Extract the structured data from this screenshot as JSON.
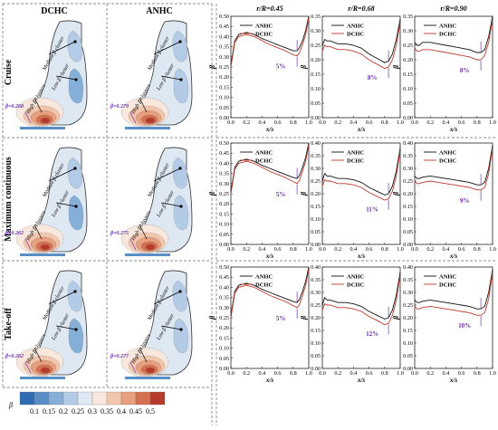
{
  "colors": {
    "anhc": "#111111",
    "dchc": "#c0392b",
    "annotation": "#6a2fb0",
    "contour": [
      "#2f6db3",
      "#5a8ec6",
      "#86afd8",
      "#b3cbe6",
      "#dde8f3",
      "#f7e7dc",
      "#f2c6ad",
      "#e69f7f",
      "#d4704f",
      "#b53a2b"
    ]
  },
  "panel_headers": {
    "dchc": "DCHC",
    "anhc": "ANHC"
  },
  "row_labels": [
    "Cruise",
    "Maximum continuous",
    "Take-off"
  ],
  "cluster_labels": {
    "medium": "Medium β cluster",
    "low": "Low β cluster",
    "high": "High β clusters"
  },
  "contour_values": [
    {
      "dchc": "β=0.268",
      "anhc": "β=0.279"
    },
    {
      "dchc": "β=0.262",
      "anhc": "β=0.275"
    },
    {
      "dchc": "β=0.262",
      "anhc": "β=0.277"
    }
  ],
  "colorbar": {
    "symbol": "β",
    "ticks": [
      "0.1",
      "0.15",
      "0.2",
      "0.25",
      "0.3",
      "0.35",
      "0.4",
      "0.45",
      "0.5"
    ]
  },
  "chart_data": [
    {
      "type": "line",
      "title": "r/R=0.45",
      "row": "Cruise",
      "xlabel": "x/s",
      "ylabel": "β",
      "xlim": [
        0,
        1
      ],
      "ylim": [
        0,
        0.5
      ],
      "series": [
        {
          "name": "ANHC",
          "x": [
            0,
            0.05,
            0.1,
            0.2,
            0.3,
            0.4,
            0.5,
            0.6,
            0.7,
            0.8,
            0.85,
            0.88,
            0.92,
            0.96,
            1
          ],
          "values": [
            0.26,
            0.38,
            0.41,
            0.42,
            0.41,
            0.39,
            0.375,
            0.36,
            0.345,
            0.33,
            0.33,
            0.345,
            0.38,
            0.43,
            0.5
          ]
        },
        {
          "name": "DCHC",
          "x": [
            0,
            0.05,
            0.1,
            0.2,
            0.3,
            0.4,
            0.5,
            0.6,
            0.7,
            0.8,
            0.85,
            0.88,
            0.92,
            0.96,
            1
          ],
          "values": [
            0.25,
            0.37,
            0.4,
            0.41,
            0.4,
            0.38,
            0.36,
            0.345,
            0.33,
            0.31,
            0.305,
            0.32,
            0.36,
            0.41,
            0.49
          ]
        }
      ],
      "annotation": "5%"
    },
    {
      "type": "line",
      "title": "r/R=0.68",
      "row": "Cruise",
      "xlabel": "x/s",
      "ylabel": "β",
      "xlim": [
        0,
        1
      ],
      "ylim": [
        0,
        0.35
      ],
      "series": [
        {
          "name": "ANHC",
          "x": [
            0,
            0.03,
            0.06,
            0.1,
            0.2,
            0.3,
            0.4,
            0.5,
            0.6,
            0.7,
            0.8,
            0.85,
            0.9,
            0.95,
            1
          ],
          "values": [
            0.25,
            0.27,
            0.265,
            0.265,
            0.255,
            0.255,
            0.25,
            0.24,
            0.22,
            0.205,
            0.19,
            0.195,
            0.22,
            0.27,
            0.34
          ]
        },
        {
          "name": "DCHC",
          "x": [
            0,
            0.03,
            0.06,
            0.1,
            0.2,
            0.3,
            0.4,
            0.5,
            0.6,
            0.7,
            0.8,
            0.85,
            0.9,
            0.95,
            1
          ],
          "values": [
            0.23,
            0.25,
            0.245,
            0.245,
            0.235,
            0.235,
            0.23,
            0.22,
            0.2,
            0.185,
            0.17,
            0.175,
            0.2,
            0.25,
            0.33
          ]
        }
      ],
      "annotation": "8%"
    },
    {
      "type": "line",
      "title": "r/R=0.90",
      "row": "Cruise",
      "xlabel": "x/s",
      "ylabel": "β",
      "xlim": [
        0,
        1
      ],
      "ylim": [
        0,
        0.35
      ],
      "series": [
        {
          "name": "ANHC",
          "x": [
            0,
            0.03,
            0.06,
            0.1,
            0.2,
            0.3,
            0.4,
            0.5,
            0.6,
            0.7,
            0.8,
            0.85,
            0.9,
            0.95,
            1
          ],
          "values": [
            0.26,
            0.25,
            0.25,
            0.26,
            0.26,
            0.255,
            0.25,
            0.245,
            0.24,
            0.235,
            0.225,
            0.225,
            0.235,
            0.28,
            0.35
          ]
        },
        {
          "name": "DCHC",
          "x": [
            0,
            0.03,
            0.06,
            0.1,
            0.2,
            0.3,
            0.4,
            0.5,
            0.6,
            0.7,
            0.8,
            0.85,
            0.9,
            0.95,
            1
          ],
          "values": [
            0.24,
            0.23,
            0.23,
            0.235,
            0.235,
            0.23,
            0.225,
            0.22,
            0.215,
            0.21,
            0.2,
            0.2,
            0.215,
            0.26,
            0.34
          ]
        }
      ],
      "annotation": "8%"
    },
    {
      "type": "line",
      "title": "",
      "row": "Maximum continuous",
      "xlabel": "x/s",
      "ylabel": "β",
      "xlim": [
        0,
        1
      ],
      "ylim": [
        0,
        0.5
      ],
      "series": [
        {
          "name": "ANHC",
          "x": [
            0,
            0.05,
            0.1,
            0.2,
            0.3,
            0.4,
            0.5,
            0.6,
            0.7,
            0.8,
            0.85,
            0.88,
            0.92,
            0.96,
            1
          ],
          "values": [
            0.26,
            0.38,
            0.41,
            0.42,
            0.41,
            0.39,
            0.375,
            0.36,
            0.345,
            0.33,
            0.325,
            0.34,
            0.38,
            0.43,
            0.5
          ]
        },
        {
          "name": "DCHC",
          "x": [
            0,
            0.05,
            0.1,
            0.2,
            0.3,
            0.4,
            0.5,
            0.6,
            0.7,
            0.8,
            0.85,
            0.88,
            0.92,
            0.96,
            1
          ],
          "values": [
            0.25,
            0.37,
            0.4,
            0.41,
            0.4,
            0.38,
            0.36,
            0.345,
            0.33,
            0.31,
            0.3,
            0.315,
            0.36,
            0.41,
            0.49
          ]
        }
      ],
      "annotation": "5%"
    },
    {
      "type": "line",
      "title": "",
      "row": "Maximum continuous",
      "xlabel": "x/s",
      "ylabel": "β",
      "xlim": [
        0,
        1
      ],
      "ylim": [
        0,
        0.4
      ],
      "series": [
        {
          "name": "ANHC",
          "x": [
            0,
            0.03,
            0.06,
            0.1,
            0.2,
            0.3,
            0.4,
            0.5,
            0.6,
            0.7,
            0.8,
            0.85,
            0.9,
            0.95,
            1
          ],
          "values": [
            0.25,
            0.28,
            0.27,
            0.27,
            0.26,
            0.26,
            0.255,
            0.245,
            0.225,
            0.21,
            0.195,
            0.2,
            0.23,
            0.29,
            0.38
          ]
        },
        {
          "name": "DCHC",
          "x": [
            0,
            0.03,
            0.06,
            0.1,
            0.2,
            0.3,
            0.4,
            0.5,
            0.6,
            0.7,
            0.8,
            0.85,
            0.9,
            0.95,
            1
          ],
          "values": [
            0.23,
            0.255,
            0.25,
            0.25,
            0.24,
            0.24,
            0.235,
            0.225,
            0.205,
            0.19,
            0.175,
            0.18,
            0.21,
            0.27,
            0.37
          ]
        }
      ],
      "annotation": "11%"
    },
    {
      "type": "line",
      "title": "",
      "row": "Maximum continuous",
      "xlabel": "x/s",
      "ylabel": "β",
      "xlim": [
        0,
        1
      ],
      "ylim": [
        0,
        0.4
      ],
      "series": [
        {
          "name": "ANHC",
          "x": [
            0,
            0.03,
            0.06,
            0.1,
            0.2,
            0.3,
            0.4,
            0.5,
            0.6,
            0.7,
            0.8,
            0.85,
            0.9,
            0.95,
            1
          ],
          "values": [
            0.27,
            0.26,
            0.26,
            0.265,
            0.27,
            0.265,
            0.26,
            0.255,
            0.25,
            0.245,
            0.235,
            0.235,
            0.245,
            0.3,
            0.39
          ]
        },
        {
          "name": "DCHC",
          "x": [
            0,
            0.03,
            0.06,
            0.1,
            0.2,
            0.3,
            0.4,
            0.5,
            0.6,
            0.7,
            0.8,
            0.85,
            0.9,
            0.95,
            1
          ],
          "values": [
            0.25,
            0.24,
            0.24,
            0.245,
            0.25,
            0.245,
            0.24,
            0.235,
            0.23,
            0.225,
            0.215,
            0.215,
            0.225,
            0.28,
            0.38
          ]
        }
      ],
      "annotation": "9%"
    },
    {
      "type": "line",
      "title": "",
      "row": "Take-off",
      "xlabel": "x/s",
      "ylabel": "β",
      "xlim": [
        0,
        1
      ],
      "ylim": [
        0,
        0.5
      ],
      "series": [
        {
          "name": "ANHC",
          "x": [
            0,
            0.05,
            0.1,
            0.2,
            0.3,
            0.4,
            0.5,
            0.6,
            0.7,
            0.8,
            0.85,
            0.88,
            0.92,
            0.96,
            1
          ],
          "values": [
            0.26,
            0.38,
            0.41,
            0.42,
            0.41,
            0.39,
            0.375,
            0.36,
            0.345,
            0.33,
            0.325,
            0.34,
            0.38,
            0.43,
            0.5
          ]
        },
        {
          "name": "DCHC",
          "x": [
            0,
            0.05,
            0.1,
            0.2,
            0.3,
            0.4,
            0.5,
            0.6,
            0.7,
            0.8,
            0.85,
            0.88,
            0.92,
            0.96,
            1
          ],
          "values": [
            0.25,
            0.37,
            0.4,
            0.41,
            0.4,
            0.38,
            0.36,
            0.345,
            0.33,
            0.31,
            0.3,
            0.315,
            0.36,
            0.41,
            0.49
          ]
        }
      ],
      "annotation": "5%"
    },
    {
      "type": "line",
      "title": "",
      "row": "Take-off",
      "xlabel": "x/s",
      "ylabel": "β",
      "xlim": [
        0,
        1
      ],
      "ylim": [
        0,
        0.4
      ],
      "series": [
        {
          "name": "ANHC",
          "x": [
            0,
            0.03,
            0.06,
            0.1,
            0.2,
            0.3,
            0.4,
            0.5,
            0.6,
            0.7,
            0.8,
            0.85,
            0.9,
            0.95,
            1
          ],
          "values": [
            0.25,
            0.28,
            0.27,
            0.27,
            0.26,
            0.26,
            0.255,
            0.245,
            0.225,
            0.21,
            0.195,
            0.2,
            0.23,
            0.29,
            0.38
          ]
        },
        {
          "name": "DCHC",
          "x": [
            0,
            0.03,
            0.06,
            0.1,
            0.2,
            0.3,
            0.4,
            0.5,
            0.6,
            0.7,
            0.8,
            0.85,
            0.9,
            0.95,
            1
          ],
          "values": [
            0.23,
            0.255,
            0.25,
            0.25,
            0.24,
            0.24,
            0.235,
            0.225,
            0.205,
            0.19,
            0.172,
            0.178,
            0.21,
            0.27,
            0.37
          ]
        }
      ],
      "annotation": "12%"
    },
    {
      "type": "line",
      "title": "",
      "row": "Take-off",
      "xlabel": "x/s",
      "ylabel": "β",
      "xlim": [
        0,
        1
      ],
      "ylim": [
        0,
        0.4
      ],
      "series": [
        {
          "name": "ANHC",
          "x": [
            0,
            0.03,
            0.06,
            0.1,
            0.2,
            0.3,
            0.4,
            0.5,
            0.6,
            0.7,
            0.8,
            0.85,
            0.9,
            0.95,
            1
          ],
          "values": [
            0.27,
            0.26,
            0.26,
            0.265,
            0.27,
            0.265,
            0.26,
            0.255,
            0.25,
            0.245,
            0.235,
            0.235,
            0.245,
            0.3,
            0.39
          ]
        },
        {
          "name": "DCHC",
          "x": [
            0,
            0.03,
            0.06,
            0.1,
            0.2,
            0.3,
            0.4,
            0.5,
            0.6,
            0.7,
            0.8,
            0.85,
            0.9,
            0.95,
            1
          ],
          "values": [
            0.245,
            0.235,
            0.235,
            0.24,
            0.245,
            0.24,
            0.235,
            0.23,
            0.225,
            0.22,
            0.21,
            0.21,
            0.22,
            0.275,
            0.38
          ]
        }
      ],
      "annotation": "10%"
    }
  ]
}
